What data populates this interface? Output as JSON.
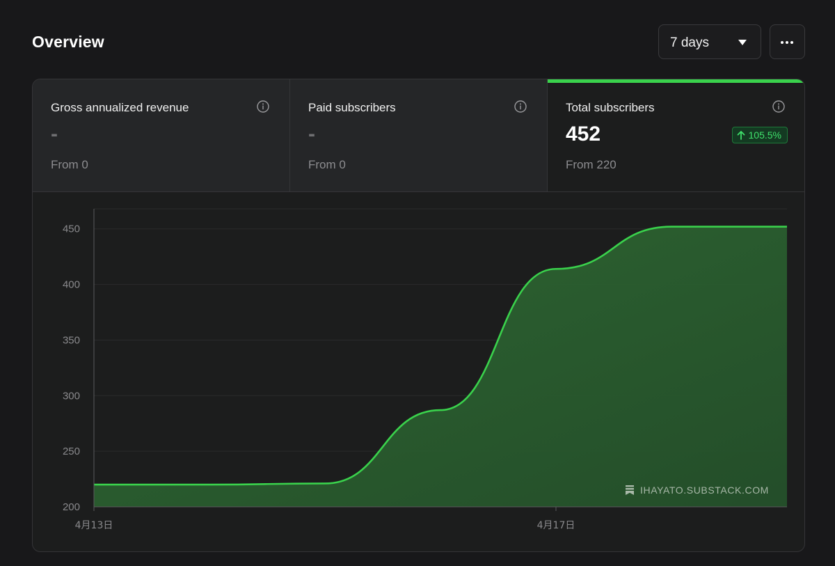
{
  "header": {
    "title": "Overview",
    "range_select": "7 days"
  },
  "metrics": [
    {
      "label": "Gross annualized revenue",
      "value": "-",
      "from": "From 0",
      "active": false
    },
    {
      "label": "Paid subscribers",
      "value": "-",
      "from": "From 0",
      "active": false
    },
    {
      "label": "Total subscribers",
      "value": "452",
      "from": "From 220",
      "change": "105.5%",
      "change_direction": "up",
      "active": true
    }
  ],
  "watermark": "IHAYATO.SUBSTACK.COM",
  "colors": {
    "background": "#18181a",
    "accent": "#3ad24c",
    "area_fill": "#2a5c2e",
    "badge_text": "#3fe06b"
  },
  "icons": [
    "caret-down-icon",
    "more-icon",
    "info-icon",
    "arrow-up-icon",
    "bookmark-icon"
  ],
  "chart_data": {
    "type": "area",
    "series": [
      {
        "x": [
          "4月13日",
          "4月14日",
          "4月15日",
          "4月16日",
          "4月17日",
          "4月18日",
          "4月19日"
        ],
        "values": [
          220,
          220,
          221,
          287,
          414,
          452,
          452
        ]
      }
    ],
    "x_tick_labels": [
      "4月13日",
      "4月17日"
    ],
    "y_ticks": [
      200,
      250,
      300,
      350,
      400,
      450
    ],
    "ylim": [
      200,
      468
    ],
    "grid": true,
    "legend": "none"
  }
}
